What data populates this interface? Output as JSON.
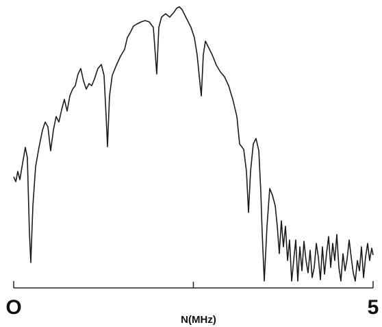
{
  "chart_data": {
    "type": "line",
    "xlabel": "N(MHz)",
    "xlim": [
      0,
      5
    ],
    "xticks": [
      {
        "value": 0,
        "label": "O"
      },
      5
    ],
    "xminorticks": [
      2.5
    ],
    "ylim": [
      0,
      105
    ],
    "grid": false,
    "series": [
      {
        "color": "#1a1a1a",
        "x": [
          0,
          0.029,
          0.057,
          0.086,
          0.124,
          0.162,
          0.19,
          0.219,
          0.238,
          0.267,
          0.305,
          0.352,
          0.4,
          0.438,
          0.476,
          0.514,
          0.552,
          0.59,
          0.629,
          0.667,
          0.705,
          0.743,
          0.781,
          0.819,
          0.857,
          0.895,
          0.933,
          0.971,
          1.01,
          1.048,
          1.086,
          1.124,
          1.171,
          1.219,
          1.257,
          1.286,
          1.305,
          1.333,
          1.371,
          1.429,
          1.486,
          1.543,
          1.581,
          1.619,
          1.667,
          1.714,
          1.771,
          1.829,
          1.886,
          1.943,
          1.971,
          1.99,
          2.019,
          2.057,
          2.114,
          2.171,
          2.229,
          2.267,
          2.305,
          2.343,
          2.381,
          2.419,
          2.467,
          2.514,
          2.552,
          2.59,
          2.61,
          2.638,
          2.667,
          2.705,
          2.762,
          2.819,
          2.876,
          2.933,
          2.99,
          3.048,
          3.105,
          3.143,
          3.2,
          3.238,
          3.267,
          3.295,
          3.333,
          3.371,
          3.41,
          3.438,
          3.457,
          3.486,
          3.524,
          3.562,
          3.6,
          3.638,
          3.667,
          3.695,
          3.724,
          3.752,
          3.781,
          3.81,
          3.838,
          3.867,
          3.895,
          3.924,
          3.952,
          3.981,
          4.01,
          4.038,
          4.067,
          4.095,
          4.124,
          4.152,
          4.181,
          4.21,
          4.238,
          4.267,
          4.295,
          4.324,
          4.352,
          4.381,
          4.41,
          4.438,
          4.467,
          4.495,
          4.524,
          4.552,
          4.581,
          4.61,
          4.638,
          4.667,
          4.695,
          4.724,
          4.752,
          4.781,
          4.81,
          4.838,
          4.867,
          4.895,
          4.924,
          4.952,
          4.981,
          5
        ],
        "values": [
          40.5,
          38.75,
          42.5,
          39.5,
          45.5,
          51.25,
          47.5,
          20,
          9.25,
          30,
          44.25,
          51.25,
          57.5,
          60.5,
          58.75,
          50,
          57.5,
          62.5,
          60.5,
          65,
          68.75,
          64.5,
          70,
          72.5,
          73.75,
          78,
          80,
          75.5,
          72.5,
          74.5,
          73.75,
          76.25,
          80,
          81.5,
          77.5,
          62.5,
          51.5,
          70,
          77.5,
          81.25,
          84.5,
          87,
          91.25,
          93,
          95.5,
          96.25,
          97,
          97.5,
          97,
          95,
          85,
          78,
          95,
          98.75,
          100,
          98.75,
          100.5,
          102,
          102.5,
          101.5,
          99.5,
          97.5,
          95,
          91.25,
          85,
          75,
          70,
          85,
          90,
          88,
          85,
          81.25,
          78.75,
          77,
          73.75,
          68.75,
          62.5,
          52.5,
          50.5,
          42.5,
          27.5,
          42.5,
          52.5,
          54.5,
          50,
          35,
          20,
          2.5,
          22.5,
          36.25,
          33.75,
          30,
          22.5,
          12.5,
          24.5,
          15,
          22.5,
          10,
          17.5,
          2.5,
          10,
          17.5,
          2.5,
          15,
          6.25,
          17,
          10,
          5.5,
          13.75,
          3.75,
          7.5,
          16.25,
          11.25,
          3,
          15,
          5,
          12.5,
          18.75,
          7.5,
          16.25,
          10,
          19.5,
          7.5,
          2.5,
          12.5,
          6.25,
          10.5,
          17.5,
          11.25,
          5.5,
          2.5,
          10,
          6.25,
          15,
          3.75,
          11.25,
          16.25,
          10,
          14.5,
          12
        ]
      }
    ]
  }
}
